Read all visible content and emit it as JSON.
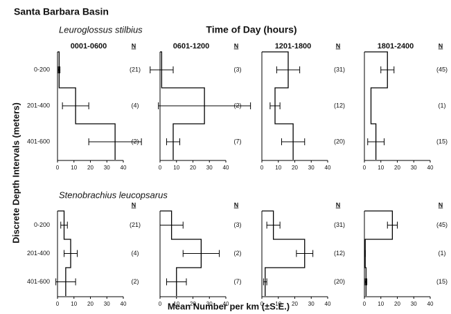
{
  "title": "Santa Barbara Basin",
  "subtitle": "Time of Day (hours)",
  "y_label": "Discrete Depth Intervals (meters)",
  "x_label": "Mean Number per km (±S.E.)",
  "rows": [
    "Leuroglossus stilbius",
    "Stenobrachius leucopsarus"
  ],
  "columns": [
    "0001-0600",
    "0601-1200",
    "1201-1800",
    "1801-2400"
  ],
  "depth_categories": [
    "0-200",
    "201-400",
    "401-600"
  ],
  "chart_data": [
    {
      "type": "profile",
      "n_header": "N",
      "values": [
        1,
        11,
        35
      ],
      "errors": [
        0.5,
        8,
        16
      ],
      "n_labels": [
        "(21)",
        "(4)",
        "(2)"
      ],
      "xlim": [
        0,
        40
      ],
      "xticks": [
        0,
        10,
        20,
        30,
        40
      ],
      "color": "#000000"
    },
    {
      "type": "profile",
      "n_header": "N",
      "values": [
        1,
        27,
        8
      ],
      "errors": [
        7,
        28,
        4
      ],
      "n_labels": [
        "(3)",
        "(2)",
        "(7)"
      ],
      "xlim": [
        0,
        40
      ],
      "xticks": [
        0,
        10,
        20,
        30,
        40
      ],
      "color": "#000000"
    },
    {
      "type": "profile",
      "n_header": "N",
      "values": [
        16,
        8,
        19
      ],
      "errors": [
        7,
        3,
        7
      ],
      "n_labels": [
        "(31)",
        "(12)",
        "(20)"
      ],
      "xlim": [
        0,
        40
      ],
      "xticks": [
        0,
        10,
        20,
        30,
        40
      ],
      "color": "#000000"
    },
    {
      "type": "profile",
      "n_header": "N",
      "values": [
        14,
        4,
        7
      ],
      "errors": [
        4,
        0,
        5
      ],
      "n_labels": [
        "(45)",
        "(1)",
        "(15)"
      ],
      "xlim": [
        0,
        40
      ],
      "xticks": [
        0,
        10,
        20,
        30,
        40
      ],
      "color": "#000000"
    },
    {
      "type": "profile",
      "n_header": "N",
      "values": [
        4,
        8,
        5
      ],
      "errors": [
        2,
        4,
        6
      ],
      "n_labels": [
        "(21)",
        "(4)",
        "(2)"
      ],
      "xlim": [
        0,
        40
      ],
      "xticks": [
        0,
        10,
        20,
        30,
        40
      ],
      "color": "#000000"
    },
    {
      "type": "profile",
      "n_header": "N",
      "values": [
        7,
        25,
        10
      ],
      "errors": [
        7,
        11,
        6
      ],
      "n_labels": [
        "(3)",
        "(2)",
        "(7)"
      ],
      "xlim": [
        0,
        40
      ],
      "xticks": [
        0,
        10,
        20,
        30,
        40
      ],
      "color": "#000000"
    },
    {
      "type": "profile",
      "n_header": "N",
      "values": [
        7,
        26,
        2
      ],
      "errors": [
        4,
        5,
        1
      ],
      "n_labels": [
        "(31)",
        "(12)",
        "(20)"
      ],
      "xlim": [
        0,
        40
      ],
      "xticks": [
        0,
        10,
        20,
        30,
        40
      ],
      "color": "#000000"
    },
    {
      "type": "profile",
      "n_header": "N",
      "values": [
        17,
        0.5,
        1
      ],
      "errors": [
        3,
        0,
        0.5
      ],
      "n_labels": [
        "(45)",
        "(1)",
        "(15)"
      ],
      "xlim": [
        0,
        40
      ],
      "xticks": [
        0,
        10,
        20,
        30,
        40
      ],
      "color": "#000000"
    }
  ]
}
